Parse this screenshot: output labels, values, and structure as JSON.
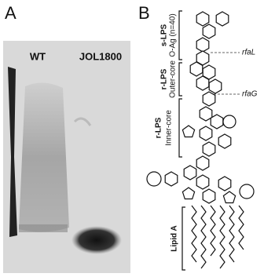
{
  "panel_a": {
    "label": "A",
    "lanes": [
      "WT",
      "JOL1800"
    ]
  },
  "panel_b": {
    "label": "B",
    "regions": [
      {
        "name": "s-LPS",
        "part": "O-Ag (n=40)"
      },
      {
        "name": "r-LPS",
        "part": "Outer-core"
      },
      {
        "name": "r-LPS",
        "part": "Inner-core"
      },
      {
        "name": "Lipid A"
      }
    ],
    "enzymes": [
      "rfaL",
      "rfaG"
    ]
  }
}
